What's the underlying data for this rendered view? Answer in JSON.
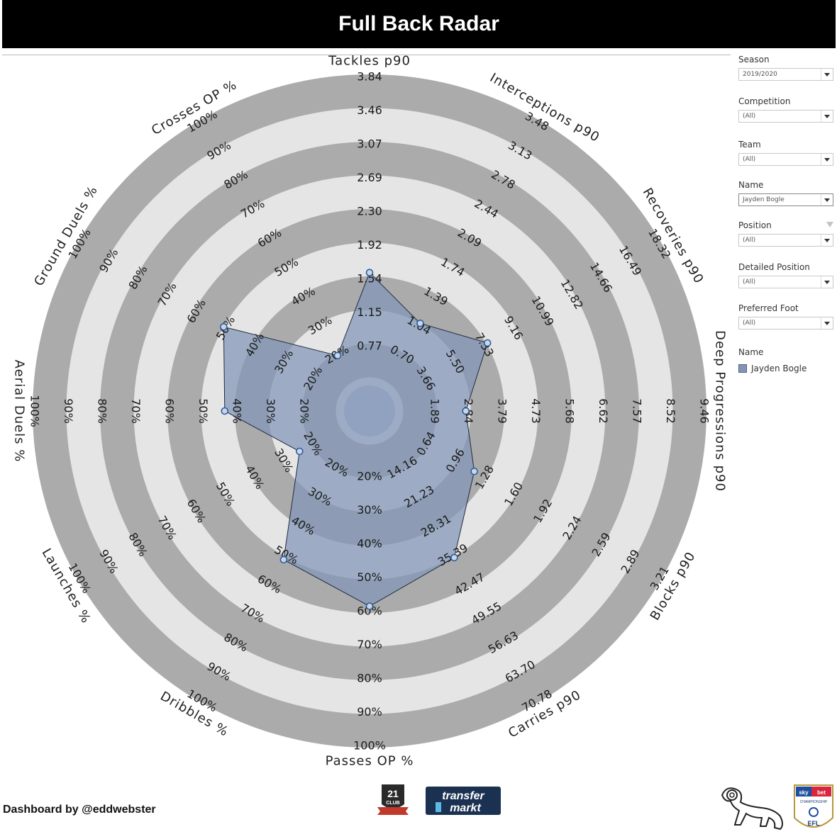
{
  "header": {
    "title": "Full Back Radar"
  },
  "filters": [
    {
      "label": "Season",
      "value": "2019/2020"
    },
    {
      "label": "Competition",
      "value": "(All)"
    },
    {
      "label": "Team",
      "value": "(All)"
    },
    {
      "label": "Name",
      "value": "Jayden Bogle",
      "active": true
    },
    {
      "label": "Position",
      "value": "(All)",
      "funnel": true
    },
    {
      "label": "Detailed Position",
      "value": "(All)"
    },
    {
      "label": "Preferred Foot",
      "value": "(All)"
    }
  ],
  "legend": {
    "title": "Name",
    "items": [
      {
        "label": "Jayden Bogle",
        "color": "#8196b7"
      }
    ]
  },
  "footer": {
    "credit": "Dashboard by @eddwebster"
  },
  "logos": [
    "21st-club-logo",
    "transfermarkt-logo",
    "derby-county-ram-logo",
    "sky-bet-championship-efl-logo"
  ],
  "chart_data": {
    "type": "radar",
    "rings": 10,
    "axes": [
      {
        "name": "Tackles p90",
        "ticks": [
          "0.77",
          "1.15",
          "1.54",
          "1.92",
          "2.30",
          "2.69",
          "3.07",
          "3.46",
          "3.84"
        ],
        "value": 1.58
      },
      {
        "name": "Interceptions p90",
        "ticks": [
          "0.70",
          "1.04",
          "1.39",
          "1.74",
          "2.09",
          "2.44",
          "2.78",
          "3.13",
          "3.48"
        ],
        "value": 1.05
      },
      {
        "name": "Recoveries p90",
        "ticks": [
          "3.66",
          "5.50",
          "7.33",
          "9.16",
          "10.99",
          "12.82",
          "14.66",
          "16.49",
          "18.32"
        ],
        "value": 7.4
      },
      {
        "name": "Deep Progressions p90",
        "ticks": [
          "1.89",
          "2.84",
          "3.79",
          "4.73",
          "5.68",
          "6.62",
          "7.57",
          "8.52",
          "9.46"
        ],
        "value": 2.7
      },
      {
        "name": "Blocks p90",
        "ticks": [
          "0.64",
          "0.96",
          "1.28",
          "1.60",
          "1.92",
          "2.24",
          "2.59",
          "2.89",
          "3.21"
        ],
        "value": 1.15
      },
      {
        "name": "Carries p90",
        "ticks": [
          "14.16",
          "21.23",
          "28.31",
          "35.39",
          "42.47",
          "49.55",
          "56.63",
          "63.70",
          "70.78"
        ],
        "value": 35.6
      },
      {
        "name": "Passes OP %",
        "ticks": [
          "20%",
          "30%",
          "40%",
          "50%",
          "60%",
          "70%",
          "80%",
          "90%",
          "100%"
        ],
        "value": 58
      },
      {
        "name": "Dribbles %",
        "ticks": [
          "20%",
          "30%",
          "40%",
          "50%",
          "60%",
          "70%",
          "80%",
          "90%",
          "100%"
        ],
        "value": 51
      },
      {
        "name": "Launches %",
        "ticks": [
          "20%",
          "30%",
          "40%",
          "50%",
          "60%",
          "70%",
          "80%",
          "90%",
          "100%"
        ],
        "value": 24
      },
      {
        "name": "Aerial Duels %",
        "ticks": [
          "20%",
          "30%",
          "40%",
          "50%",
          "60%",
          "70%",
          "80%",
          "90%",
          "100%"
        ],
        "value": 43
      },
      {
        "name": "Ground Duels %",
        "ticks": [
          "20%",
          "30%",
          "40%",
          "50%",
          "60%",
          "70%",
          "80%",
          "90%",
          "100%"
        ],
        "value": 50
      },
      {
        "name": "Crosses OP %",
        "ticks": [
          "20%",
          "30%",
          "40%",
          "50%",
          "60%",
          "70%",
          "80%",
          "90%",
          "100%"
        ],
        "value": 19
      }
    ],
    "series": [
      {
        "name": "Jayden Bogle",
        "color": "#8196b7"
      }
    ],
    "colors": {
      "ring_dark": "#ababab",
      "ring_light": "#e5e5e5",
      "center": "#ababab"
    }
  }
}
